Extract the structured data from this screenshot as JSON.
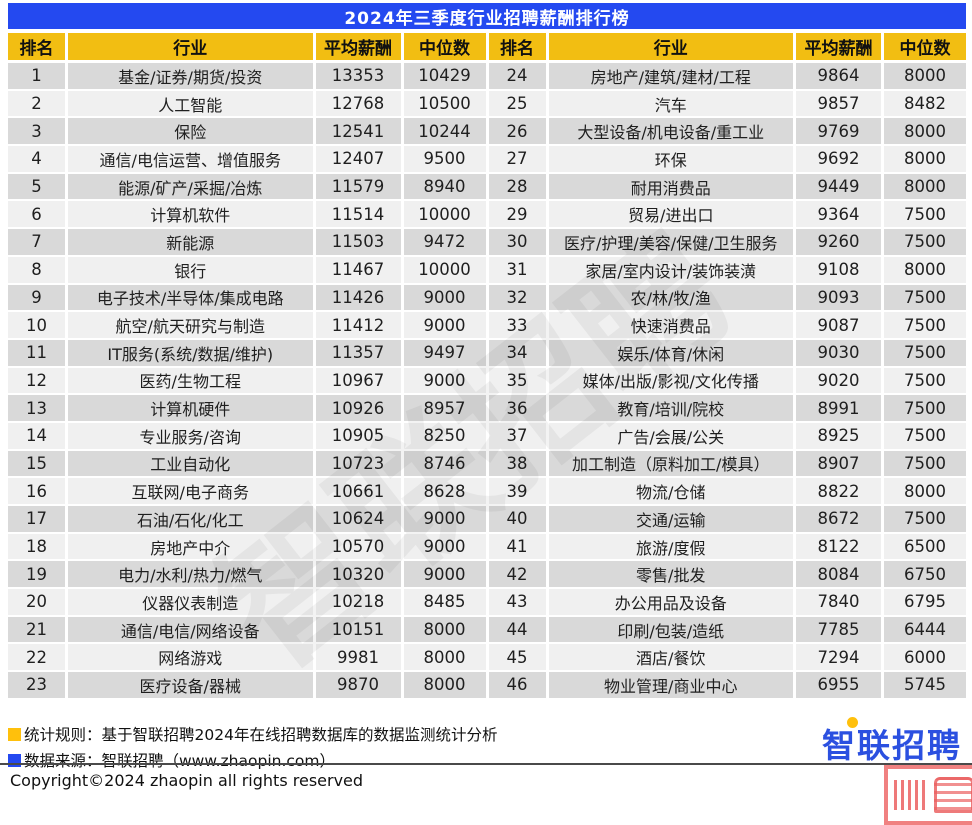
{
  "title": "2024年三季度行业招聘薪酬排行榜",
  "chart_data": {
    "type": "table",
    "title": "2024年三季度行业招聘薪酬排行榜",
    "columns": [
      "排名",
      "行业",
      "平均薪酬",
      "中位数"
    ],
    "left_rows": [
      [
        1,
        "基金/证券/期货/投资",
        13353,
        10429
      ],
      [
        2,
        "人工智能",
        12768,
        10500
      ],
      [
        3,
        "保险",
        12541,
        10244
      ],
      [
        4,
        "通信/电信运营、增值服务",
        12407,
        9500
      ],
      [
        5,
        "能源/矿产/采掘/冶炼",
        11579,
        8940
      ],
      [
        6,
        "计算机软件",
        11514,
        10000
      ],
      [
        7,
        "新能源",
        11503,
        9472
      ],
      [
        8,
        "银行",
        11467,
        10000
      ],
      [
        9,
        "电子技术/半导体/集成电路",
        11426,
        9000
      ],
      [
        10,
        "航空/航天研究与制造",
        11412,
        9000
      ],
      [
        11,
        "IT服务(系统/数据/维护)",
        11357,
        9497
      ],
      [
        12,
        "医药/生物工程",
        10967,
        9000
      ],
      [
        13,
        "计算机硬件",
        10926,
        8957
      ],
      [
        14,
        "专业服务/咨询",
        10905,
        8250
      ],
      [
        15,
        "工业自动化",
        10723,
        8746
      ],
      [
        16,
        "互联网/电子商务",
        10661,
        8628
      ],
      [
        17,
        "石油/石化/化工",
        10624,
        9000
      ],
      [
        18,
        "房地产中介",
        10570,
        9000
      ],
      [
        19,
        "电力/水利/热力/燃气",
        10320,
        9000
      ],
      [
        20,
        "仪器仪表制造",
        10218,
        8485
      ],
      [
        21,
        "通信/电信/网络设备",
        10151,
        8000
      ],
      [
        22,
        "网络游戏",
        9981,
        8000
      ],
      [
        23,
        "医疗设备/器械",
        9870,
        8000
      ]
    ],
    "right_rows": [
      [
        24,
        "房地产/建筑/建材/工程",
        9864,
        8000
      ],
      [
        25,
        "汽车",
        9857,
        8482
      ],
      [
        26,
        "大型设备/机电设备/重工业",
        9769,
        8000
      ],
      [
        27,
        "环保",
        9692,
        8000
      ],
      [
        28,
        "耐用消费品",
        9449,
        8000
      ],
      [
        29,
        "贸易/进出口",
        9364,
        7500
      ],
      [
        30,
        "医疗/护理/美容/保健/卫生服务",
        9260,
        7500
      ],
      [
        31,
        "家居/室内设计/装饰装潢",
        9108,
        8000
      ],
      [
        32,
        "农/林/牧/渔",
        9093,
        7500
      ],
      [
        33,
        "快速消费品",
        9087,
        7500
      ],
      [
        34,
        "娱乐/体育/休闲",
        9030,
        7500
      ],
      [
        35,
        "媒体/出版/影视/文化传播",
        9020,
        7500
      ],
      [
        36,
        "教育/培训/院校",
        8991,
        7500
      ],
      [
        37,
        "广告/会展/公关",
        8925,
        7500
      ],
      [
        38,
        "加工制造（原料加工/模具）",
        8907,
        7500
      ],
      [
        39,
        "物流/仓储",
        8822,
        8000
      ],
      [
        40,
        "交通/运输",
        8672,
        7500
      ],
      [
        41,
        "旅游/度假",
        8122,
        6500
      ],
      [
        42,
        "零售/批发",
        8084,
        6750
      ],
      [
        43,
        "办公用品及设备",
        7840,
        6795
      ],
      [
        44,
        "印刷/包装/造纸",
        7785,
        6444
      ],
      [
        45,
        "酒店/餐饮",
        7294,
        6000
      ],
      [
        46,
        "物业管理/商业中心",
        6955,
        5745
      ]
    ]
  },
  "footer": {
    "legend": [
      {
        "color": "#FFC00C",
        "label": "统计规则：基于智联招聘2024年在线招聘数据库的数据监测统计分析"
      },
      {
        "color": "#2449F0",
        "label": "数据来源：智联招聘（www.zhaopin.com）"
      }
    ],
    "copyright": "Copyright©2024 zhaopin all rights reserved",
    "logo_first_char": "智",
    "logo_rest": "联招聘"
  },
  "watermark_text": "智联招聘",
  "colors": {
    "title_bar_blue": "#2449F0",
    "header_gold": "#F2BE12",
    "row_dark": "#D9D9D9",
    "row_light": "#F0F0F0",
    "logo_blue": "#2B50E0",
    "logo_dot_yellow": "#FFC00C",
    "seal_red": "#E84646"
  }
}
